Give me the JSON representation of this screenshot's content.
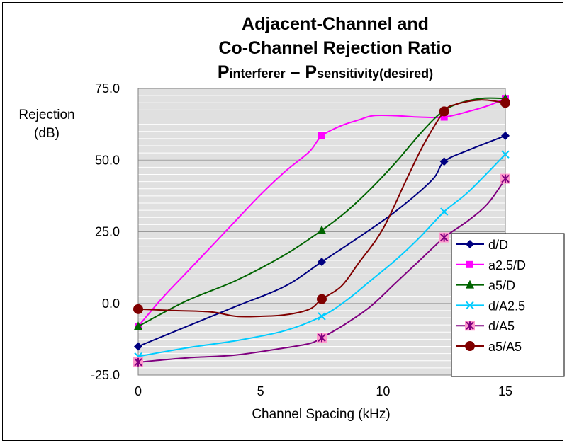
{
  "chart_data": {
    "type": "line",
    "title_line1": "Adjacent-Channel and",
    "title_line2": "Co-Channel Rejection Ratio",
    "subtitle": {
      "p1": "P",
      "s1": "interferer",
      "dash": " – ",
      "p2": "P",
      "s2": "sensitivity(desired)"
    },
    "ylabel_line1": "Rejection",
    "ylabel_line2": "(dB)",
    "xlabel": "Channel Spacing (kHz)",
    "xlim": [
      0,
      15
    ],
    "ylim": [
      -25,
      75
    ],
    "x_ticks": [
      0,
      5,
      10,
      15
    ],
    "x_tick_labels": [
      "0",
      "5",
      "10",
      "15"
    ],
    "y_ticks": [
      75,
      50,
      25,
      0,
      -25
    ],
    "y_tick_labels": [
      "75.0",
      "50.0",
      "25.0",
      "0.0",
      "-25.0"
    ],
    "y_minor_step": 2.5,
    "grid": true,
    "legend_position": "right",
    "plot_background": "#e0e0e0",
    "series": [
      {
        "name": "d/D",
        "color": "#000080",
        "marker": "diamond",
        "markers": [
          [
            0,
            -15
          ],
          [
            7.5,
            14.5
          ],
          [
            12.5,
            49.5
          ],
          [
            15,
            58.5
          ]
        ],
        "curve": [
          [
            0,
            -15
          ],
          [
            2,
            -8
          ],
          [
            4,
            -1
          ],
          [
            6,
            6
          ],
          [
            7.5,
            14.5
          ],
          [
            9,
            23
          ],
          [
            10.5,
            32
          ],
          [
            12,
            43
          ],
          [
            12.5,
            49.5
          ],
          [
            13.5,
            53.5
          ],
          [
            15,
            58.5
          ]
        ]
      },
      {
        "name": "a2.5/D",
        "color": "#ff00ff",
        "marker": "square",
        "markers": [
          [
            0,
            -8
          ],
          [
            7.5,
            58.5
          ],
          [
            12.5,
            65
          ],
          [
            15,
            71.5
          ]
        ],
        "curve": [
          [
            0,
            -8
          ],
          [
            1,
            2
          ],
          [
            2,
            11
          ],
          [
            3,
            20
          ],
          [
            4,
            29
          ],
          [
            5,
            38
          ],
          [
            6,
            46
          ],
          [
            7,
            53
          ],
          [
            7.5,
            58.5
          ],
          [
            8.3,
            62
          ],
          [
            9,
            64
          ],
          [
            9.6,
            65.5
          ],
          [
            10.5,
            65.5
          ],
          [
            11.5,
            65
          ],
          [
            12.5,
            65
          ],
          [
            13.5,
            67
          ],
          [
            14.3,
            69
          ],
          [
            15,
            71.5
          ]
        ]
      },
      {
        "name": "a5/D",
        "color": "#006400",
        "marker": "triangle",
        "markers": [
          [
            0,
            -8
          ],
          [
            7.5,
            25.5
          ],
          [
            15,
            71.5
          ]
        ],
        "curve": [
          [
            0,
            -8
          ],
          [
            2,
            1
          ],
          [
            4,
            8
          ],
          [
            6,
            17
          ],
          [
            7.5,
            25.5
          ],
          [
            8.5,
            32
          ],
          [
            9.5,
            40
          ],
          [
            10.5,
            49
          ],
          [
            11.5,
            59
          ],
          [
            12.3,
            66
          ],
          [
            13,
            69.5
          ],
          [
            14,
            71.5
          ],
          [
            15,
            71.5
          ]
        ]
      },
      {
        "name": "d/A2.5",
        "color": "#00ccff",
        "marker": "x",
        "markers": [
          [
            0,
            -18.5
          ],
          [
            7.5,
            -4.5
          ],
          [
            12.5,
            32
          ],
          [
            15,
            52
          ]
        ],
        "curve": [
          [
            0,
            -18.5
          ],
          [
            2,
            -15.5
          ],
          [
            4,
            -13
          ],
          [
            6,
            -9.5
          ],
          [
            7.5,
            -4.5
          ],
          [
            8.5,
            1
          ],
          [
            9.5,
            8
          ],
          [
            10.5,
            15
          ],
          [
            11.5,
            23
          ],
          [
            12.5,
            32
          ],
          [
            13.5,
            39
          ],
          [
            15,
            52
          ]
        ]
      },
      {
        "name": "d/A5",
        "color": "#800080",
        "marker": "asterisk",
        "markers": [
          [
            0,
            -20.5
          ],
          [
            7.5,
            -12
          ],
          [
            12.5,
            23
          ],
          [
            15,
            43.5
          ]
        ],
        "curve": [
          [
            0,
            -20.5
          ],
          [
            2,
            -19
          ],
          [
            4,
            -18
          ],
          [
            6,
            -15.5
          ],
          [
            7,
            -14
          ],
          [
            7.5,
            -12
          ],
          [
            8.5,
            -7
          ],
          [
            9.5,
            -1
          ],
          [
            10.5,
            7
          ],
          [
            11.5,
            15
          ],
          [
            12.5,
            23
          ],
          [
            13.5,
            29
          ],
          [
            14.3,
            35
          ],
          [
            15,
            43.5
          ]
        ]
      },
      {
        "name": "a5/A5",
        "color": "#800000",
        "marker": "circle",
        "markers": [
          [
            0,
            -2
          ],
          [
            7.5,
            1.5
          ],
          [
            12.5,
            67
          ],
          [
            15,
            70
          ]
        ],
        "curve": [
          [
            0,
            -2
          ],
          [
            1.5,
            -2.5
          ],
          [
            3,
            -3
          ],
          [
            4,
            -4.5
          ],
          [
            5,
            -4.5
          ],
          [
            6,
            -4
          ],
          [
            7,
            -2
          ],
          [
            7.5,
            1.5
          ],
          [
            8.3,
            6
          ],
          [
            9,
            14
          ],
          [
            10,
            26
          ],
          [
            11,
            44
          ],
          [
            11.7,
            56
          ],
          [
            12.5,
            67
          ],
          [
            13,
            69.5
          ],
          [
            14,
            71
          ],
          [
            15,
            70
          ]
        ]
      }
    ]
  }
}
